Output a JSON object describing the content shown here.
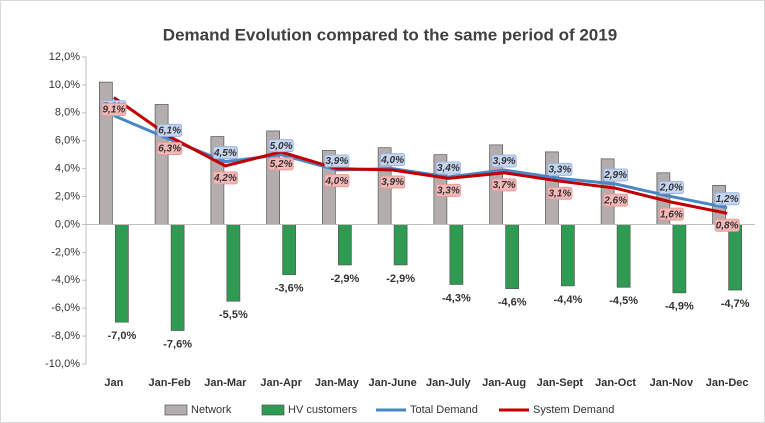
{
  "chart_data": {
    "type": "bar_line",
    "title": "Demand Evolution compared to the same period of 2019",
    "categories": [
      "Jan",
      "Jan-Feb",
      "Jan-Mar",
      "Jan-Apr",
      "Jan-May",
      "Jan-June",
      "Jan-July",
      "Jan-Aug",
      "Jan-Sept",
      "Jan-Oct",
      "Jan-Nov",
      "Jan-Dec"
    ],
    "series": [
      {
        "name": "Network",
        "kind": "bar",
        "color": "#b3adad",
        "values": [
          10.2,
          8.6,
          6.3,
          6.7,
          5.3,
          5.5,
          5.0,
          5.7,
          5.2,
          4.7,
          3.7,
          2.8
        ]
      },
      {
        "name": "HV customers",
        "kind": "bar",
        "color": "#2e9a52",
        "values": [
          -7.0,
          -7.6,
          -5.5,
          -3.6,
          -2.9,
          -2.9,
          -4.3,
          -4.6,
          -4.4,
          -4.5,
          -4.9,
          -4.7
        ],
        "value_labels": [
          "-7,0%",
          "-7,6%",
          "-5,5%",
          "-3,6%",
          "-2,9%",
          "-2,9%",
          "-4,3%",
          "-4,6%",
          "-4,4%",
          "-4,5%",
          "-4,9%",
          "-4,7%"
        ]
      },
      {
        "name": "Total Demand",
        "kind": "line",
        "color": "#4a86c5",
        "values": [
          7.8,
          6.1,
          4.5,
          5.0,
          3.9,
          4.0,
          3.4,
          3.9,
          3.3,
          2.9,
          2.0,
          1.2
        ],
        "value_labels": [
          "7,8%",
          "6,1%",
          "4,5%",
          "5,0%",
          "3,9%",
          "4,0%",
          "3,4%",
          "3,9%",
          "3,3%",
          "2,9%",
          "2,0%",
          "1,2%"
        ]
      },
      {
        "name": "System Demand",
        "kind": "line",
        "color": "#c00000",
        "values": [
          9.1,
          6.3,
          4.2,
          5.2,
          4.0,
          3.9,
          3.3,
          3.7,
          3.1,
          2.6,
          1.6,
          0.8
        ],
        "value_labels": [
          "9,1%",
          "6,3%",
          "4,2%",
          "5,2%",
          "4,0%",
          "3,9%",
          "3,3%",
          "3,7%",
          "3,1%",
          "2,6%",
          "1,6%",
          "0,8%"
        ]
      }
    ],
    "ylim": [
      -10,
      12
    ],
    "yticks": [
      {
        "value": -10,
        "label": "-10,0%"
      },
      {
        "value": -8,
        "label": "-8,0%"
      },
      {
        "value": -6,
        "label": "-6,0%"
      },
      {
        "value": -4,
        "label": "-4,0%"
      },
      {
        "value": -2,
        "label": "-2,0%"
      },
      {
        "value": 0,
        "label": "0,0%"
      },
      {
        "value": 2,
        "label": "2,0%"
      },
      {
        "value": 4,
        "label": "4,0%"
      },
      {
        "value": 6,
        "label": "6,0%"
      },
      {
        "value": 8,
        "label": "8,0%"
      },
      {
        "value": 10,
        "label": "10,0%"
      },
      {
        "value": 12,
        "label": "12,0%"
      }
    ],
    "grid": false,
    "legend": "bottom"
  }
}
